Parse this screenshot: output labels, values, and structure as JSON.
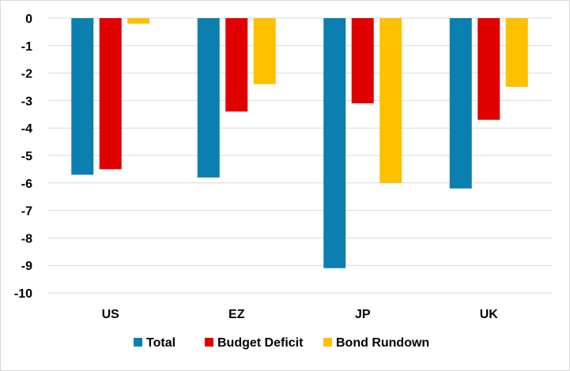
{
  "chart_data": {
    "type": "bar",
    "categories": [
      "US",
      "EZ",
      "JP",
      "UK"
    ],
    "series": [
      {
        "name": "Total",
        "color": "#0b7fb0",
        "values": [
          -5.7,
          -5.8,
          -9.1,
          -6.2
        ]
      },
      {
        "name": "Budget Deficit",
        "color": "#e00000",
        "values": [
          -5.5,
          -3.4,
          -3.1,
          -3.7
        ]
      },
      {
        "name": "Bond Rundown",
        "color": "#ffc000",
        "values": [
          -0.2,
          -2.4,
          -6.0,
          -2.5
        ]
      }
    ],
    "title": "",
    "xlabel": "",
    "ylabel": "",
    "ylim": [
      -10,
      0
    ],
    "yticks": [
      0,
      -1,
      -2,
      -3,
      -4,
      -5,
      -6,
      -7,
      -8,
      -9,
      -10
    ],
    "grid": true,
    "legend_position": "bottom"
  }
}
